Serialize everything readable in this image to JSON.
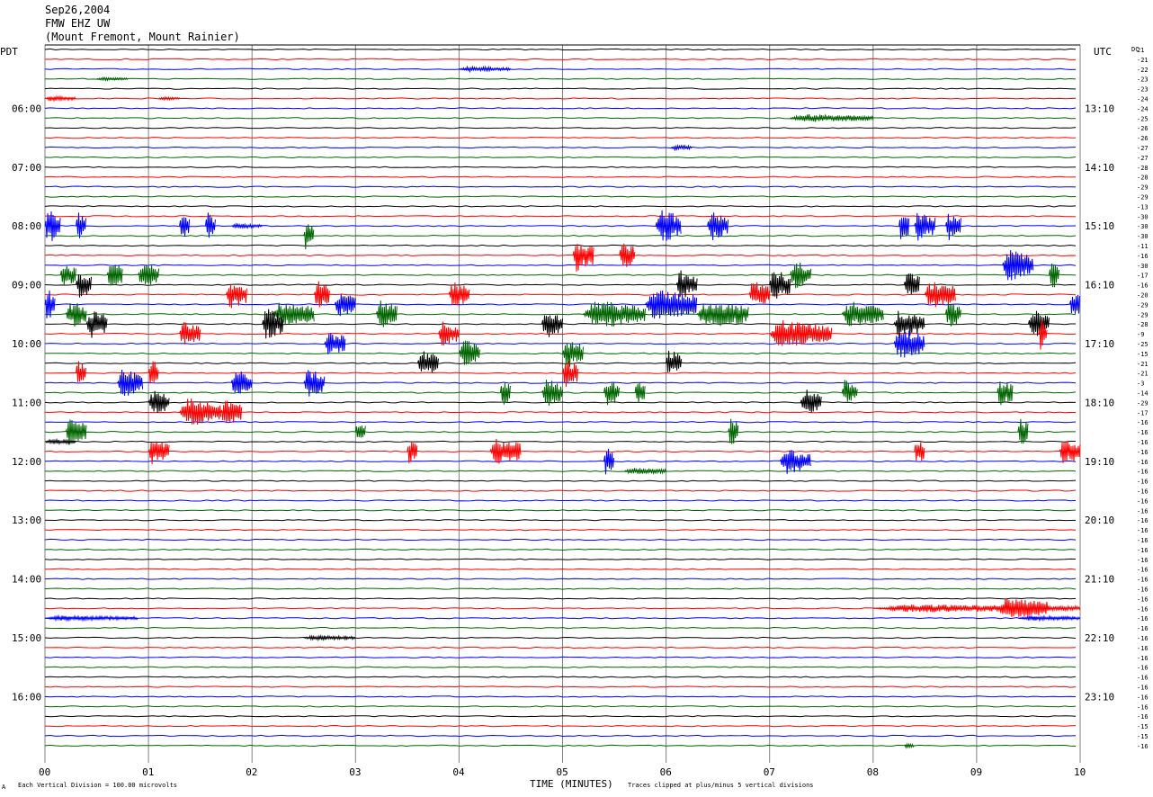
{
  "header": {
    "date": "Sep26,2004",
    "station": "FMW EHZ UW",
    "location": "(Mount Fremont, Mount Rainier)"
  },
  "left_tz": "PDT",
  "right_tz": "UTC",
  "dc_label": "DC",
  "footer": {
    "scale_note": "Each Vertical Division =  100.00 microvolts",
    "clip_note": "Traces clipped at plus/minus 5 vertical divisions",
    "mark": "A"
  },
  "colors": {
    "trace_cycle": [
      "#000000",
      "#ff0000",
      "#0000ff",
      "#006400"
    ],
    "grid": "#808080"
  },
  "chart_data": {
    "type": "line",
    "title": "",
    "xlabel": "TIME (MINUTES)",
    "ylabel": "",
    "x_ticks": [
      "00",
      "01",
      "02",
      "03",
      "04",
      "05",
      "06",
      "07",
      "08",
      "09",
      "10"
    ],
    "xlim": [
      0,
      10
    ],
    "trace_count": 72,
    "trace_interval_minutes": 10,
    "left_hour_labels": [
      "06:00",
      "07:00",
      "08:00",
      "09:00",
      "10:00",
      "11:00",
      "12:00",
      "13:00",
      "14:00",
      "15:00",
      "16:00"
    ],
    "right_hour_labels": [
      "13:10",
      "14:10",
      "15:10",
      "16:10",
      "17:10",
      "18:10",
      "19:10",
      "20:10",
      "21:10",
      "22:10",
      "23:10"
    ],
    "dc_offsets": [
      "21",
      "-21",
      "-22",
      "-23",
      "-23",
      "-24",
      "-24",
      "-25",
      "-26",
      "-26",
      "-27",
      "-27",
      "-28",
      "-28",
      "-29",
      "-29",
      "-13",
      "-30",
      "-30",
      "-30",
      "-11",
      "-16",
      "-30",
      "-17",
      "-16",
      "-20",
      "-29",
      "-29",
      "-28",
      "-9",
      "-25",
      "-15",
      "-21",
      "-21",
      "-3",
      "-14",
      "-29",
      "-17",
      "-16",
      "-16",
      "-16",
      "-16",
      "-16",
      "-16",
      "-16",
      "-16",
      "-16",
      "-16",
      "-16",
      "-16",
      "-16",
      "-16",
      "-16",
      "-16",
      "-16",
      "-16",
      "-16",
      "-16",
      "-16",
      "-16",
      "-16",
      "-16",
      "-16",
      "-16",
      "-16",
      "-16",
      "-16",
      "-16",
      "-16",
      "-15",
      "-15",
      "-16"
    ],
    "clip_divisions": 5,
    "events": [
      {
        "trace": 2,
        "start_min": 4.0,
        "dur_min": 0.5,
        "amp": 3
      },
      {
        "trace": 3,
        "start_min": 0.5,
        "dur_min": 0.3,
        "amp": 2
      },
      {
        "trace": 5,
        "start_min": 0.0,
        "dur_min": 0.3,
        "amp": 3
      },
      {
        "trace": 5,
        "start_min": 1.1,
        "dur_min": 0.2,
        "amp": 2
      },
      {
        "trace": 7,
        "start_min": 7.2,
        "dur_min": 0.8,
        "amp": 5
      },
      {
        "trace": 10,
        "start_min": 6.05,
        "dur_min": 0.2,
        "amp": 3
      },
      {
        "trace": 18,
        "start_min": 0.0,
        "dur_min": 0.15,
        "amp": 22
      },
      {
        "trace": 18,
        "start_min": 0.3,
        "dur_min": 0.1,
        "amp": 18
      },
      {
        "trace": 18,
        "start_min": 1.3,
        "dur_min": 0.1,
        "amp": 16
      },
      {
        "trace": 18,
        "start_min": 1.55,
        "dur_min": 0.1,
        "amp": 18
      },
      {
        "trace": 18,
        "start_min": 1.8,
        "dur_min": 0.3,
        "amp": 3
      },
      {
        "trace": 18,
        "start_min": 5.9,
        "dur_min": 0.25,
        "amp": 22
      },
      {
        "trace": 18,
        "start_min": 6.4,
        "dur_min": 0.2,
        "amp": 20
      },
      {
        "trace": 18,
        "start_min": 8.25,
        "dur_min": 0.1,
        "amp": 18
      },
      {
        "trace": 18,
        "start_min": 8.4,
        "dur_min": 0.2,
        "amp": 20
      },
      {
        "trace": 18,
        "start_min": 8.7,
        "dur_min": 0.15,
        "amp": 18
      },
      {
        "trace": 19,
        "start_min": 2.5,
        "dur_min": 0.1,
        "amp": 18
      },
      {
        "trace": 21,
        "start_min": 5.1,
        "dur_min": 0.2,
        "amp": 20
      },
      {
        "trace": 21,
        "start_min": 5.55,
        "dur_min": 0.15,
        "amp": 18
      },
      {
        "trace": 22,
        "start_min": 9.25,
        "dur_min": 0.3,
        "amp": 20
      },
      {
        "trace": 23,
        "start_min": 0.15,
        "dur_min": 0.15,
        "amp": 18
      },
      {
        "trace": 23,
        "start_min": 0.6,
        "dur_min": 0.15,
        "amp": 18
      },
      {
        "trace": 23,
        "start_min": 0.9,
        "dur_min": 0.2,
        "amp": 16
      },
      {
        "trace": 23,
        "start_min": 7.2,
        "dur_min": 0.2,
        "amp": 18
      },
      {
        "trace": 23,
        "start_min": 9.7,
        "dur_min": 0.1,
        "amp": 20
      },
      {
        "trace": 24,
        "start_min": 0.3,
        "dur_min": 0.15,
        "amp": 18
      },
      {
        "trace": 24,
        "start_min": 6.1,
        "dur_min": 0.2,
        "amp": 18
      },
      {
        "trace": 24,
        "start_min": 7.0,
        "dur_min": 0.2,
        "amp": 20
      },
      {
        "trace": 24,
        "start_min": 8.3,
        "dur_min": 0.15,
        "amp": 18
      },
      {
        "trace": 25,
        "start_min": 1.75,
        "dur_min": 0.2,
        "amp": 18
      },
      {
        "trace": 25,
        "start_min": 2.6,
        "dur_min": 0.15,
        "amp": 18
      },
      {
        "trace": 25,
        "start_min": 3.9,
        "dur_min": 0.2,
        "amp": 16
      },
      {
        "trace": 25,
        "start_min": 6.8,
        "dur_min": 0.2,
        "amp": 18
      },
      {
        "trace": 25,
        "start_min": 8.5,
        "dur_min": 0.3,
        "amp": 18
      },
      {
        "trace": 26,
        "start_min": 0.0,
        "dur_min": 0.1,
        "amp": 20
      },
      {
        "trace": 26,
        "start_min": 2.8,
        "dur_min": 0.2,
        "amp": 16
      },
      {
        "trace": 26,
        "start_min": 5.8,
        "dur_min": 0.5,
        "amp": 20
      },
      {
        "trace": 26,
        "start_min": 9.9,
        "dur_min": 0.1,
        "amp": 20
      },
      {
        "trace": 27,
        "start_min": 0.2,
        "dur_min": 0.2,
        "amp": 18
      },
      {
        "trace": 27,
        "start_min": 2.2,
        "dur_min": 0.4,
        "amp": 16
      },
      {
        "trace": 27,
        "start_min": 3.2,
        "dur_min": 0.2,
        "amp": 18
      },
      {
        "trace": 27,
        "start_min": 5.2,
        "dur_min": 0.6,
        "amp": 18
      },
      {
        "trace": 27,
        "start_min": 6.3,
        "dur_min": 0.5,
        "amp": 18
      },
      {
        "trace": 27,
        "start_min": 7.7,
        "dur_min": 0.4,
        "amp": 16
      },
      {
        "trace": 27,
        "start_min": 8.7,
        "dur_min": 0.15,
        "amp": 18
      },
      {
        "trace": 28,
        "start_min": 0.4,
        "dur_min": 0.2,
        "amp": 18
      },
      {
        "trace": 28,
        "start_min": 2.1,
        "dur_min": 0.2,
        "amp": 20
      },
      {
        "trace": 28,
        "start_min": 4.8,
        "dur_min": 0.2,
        "amp": 18
      },
      {
        "trace": 28,
        "start_min": 8.2,
        "dur_min": 0.3,
        "amp": 18
      },
      {
        "trace": 28,
        "start_min": 9.5,
        "dur_min": 0.2,
        "amp": 18
      },
      {
        "trace": 29,
        "start_min": 1.3,
        "dur_min": 0.2,
        "amp": 16
      },
      {
        "trace": 29,
        "start_min": 3.8,
        "dur_min": 0.2,
        "amp": 16
      },
      {
        "trace": 29,
        "start_min": 7.0,
        "dur_min": 0.6,
        "amp": 18
      },
      {
        "trace": 29,
        "start_min": 9.6,
        "dur_min": 0.08,
        "amp": 20
      },
      {
        "trace": 30,
        "start_min": 2.7,
        "dur_min": 0.2,
        "amp": 16
      },
      {
        "trace": 30,
        "start_min": 8.2,
        "dur_min": 0.3,
        "amp": 20
      },
      {
        "trace": 31,
        "start_min": 4.0,
        "dur_min": 0.2,
        "amp": 18
      },
      {
        "trace": 31,
        "start_min": 5.0,
        "dur_min": 0.2,
        "amp": 18
      },
      {
        "trace": 32,
        "start_min": 3.6,
        "dur_min": 0.2,
        "amp": 16
      },
      {
        "trace": 32,
        "start_min": 6.0,
        "dur_min": 0.15,
        "amp": 18
      },
      {
        "trace": 33,
        "start_min": 0.3,
        "dur_min": 0.1,
        "amp": 16
      },
      {
        "trace": 33,
        "start_min": 1.0,
        "dur_min": 0.1,
        "amp": 18
      },
      {
        "trace": 33,
        "start_min": 5.0,
        "dur_min": 0.15,
        "amp": 18
      },
      {
        "trace": 34,
        "start_min": 0.7,
        "dur_min": 0.25,
        "amp": 18
      },
      {
        "trace": 34,
        "start_min": 1.8,
        "dur_min": 0.2,
        "amp": 18
      },
      {
        "trace": 34,
        "start_min": 2.5,
        "dur_min": 0.2,
        "amp": 18
      },
      {
        "trace": 35,
        "start_min": 4.4,
        "dur_min": 0.1,
        "amp": 16
      },
      {
        "trace": 35,
        "start_min": 4.8,
        "dur_min": 0.2,
        "amp": 18
      },
      {
        "trace": 35,
        "start_min": 5.4,
        "dur_min": 0.15,
        "amp": 18
      },
      {
        "trace": 35,
        "start_min": 5.7,
        "dur_min": 0.1,
        "amp": 16
      },
      {
        "trace": 35,
        "start_min": 7.7,
        "dur_min": 0.15,
        "amp": 16
      },
      {
        "trace": 35,
        "start_min": 9.2,
        "dur_min": 0.15,
        "amp": 18
      },
      {
        "trace": 36,
        "start_min": 1.0,
        "dur_min": 0.2,
        "amp": 16
      },
      {
        "trace": 36,
        "start_min": 7.3,
        "dur_min": 0.2,
        "amp": 18
      },
      {
        "trace": 37,
        "start_min": 1.3,
        "dur_min": 0.4,
        "amp": 18
      },
      {
        "trace": 37,
        "start_min": 1.7,
        "dur_min": 0.2,
        "amp": 18
      },
      {
        "trace": 39,
        "start_min": 0.2,
        "dur_min": 0.2,
        "amp": 18
      },
      {
        "trace": 39,
        "start_min": 3.0,
        "dur_min": 0.1,
        "amp": 16
      },
      {
        "trace": 39,
        "start_min": 6.6,
        "dur_min": 0.1,
        "amp": 18
      },
      {
        "trace": 39,
        "start_min": 9.4,
        "dur_min": 0.1,
        "amp": 18
      },
      {
        "trace": 40,
        "start_min": 0.0,
        "dur_min": 0.3,
        "amp": 3
      },
      {
        "trace": 41,
        "start_min": 1.0,
        "dur_min": 0.2,
        "amp": 16
      },
      {
        "trace": 41,
        "start_min": 3.5,
        "dur_min": 0.1,
        "amp": 16
      },
      {
        "trace": 41,
        "start_min": 4.3,
        "dur_min": 0.3,
        "amp": 18
      },
      {
        "trace": 41,
        "start_min": 8.4,
        "dur_min": 0.1,
        "amp": 16
      },
      {
        "trace": 41,
        "start_min": 9.8,
        "dur_min": 0.2,
        "amp": 18
      },
      {
        "trace": 42,
        "start_min": 5.4,
        "dur_min": 0.1,
        "amp": 18
      },
      {
        "trace": 42,
        "start_min": 7.1,
        "dur_min": 0.3,
        "amp": 16
      },
      {
        "trace": 43,
        "start_min": 5.6,
        "dur_min": 0.4,
        "amp": 4
      },
      {
        "trace": 57,
        "start_min": 8.0,
        "dur_min": 2.0,
        "amp": 5
      },
      {
        "trace": 57,
        "start_min": 9.2,
        "dur_min": 0.5,
        "amp": 14
      },
      {
        "trace": 58,
        "start_min": 0.0,
        "dur_min": 0.9,
        "amp": 3
      },
      {
        "trace": 58,
        "start_min": 9.4,
        "dur_min": 0.6,
        "amp": 3
      },
      {
        "trace": 60,
        "start_min": 2.5,
        "dur_min": 0.5,
        "amp": 3
      },
      {
        "trace": 71,
        "start_min": 8.3,
        "dur_min": 0.1,
        "amp": 3
      }
    ]
  }
}
